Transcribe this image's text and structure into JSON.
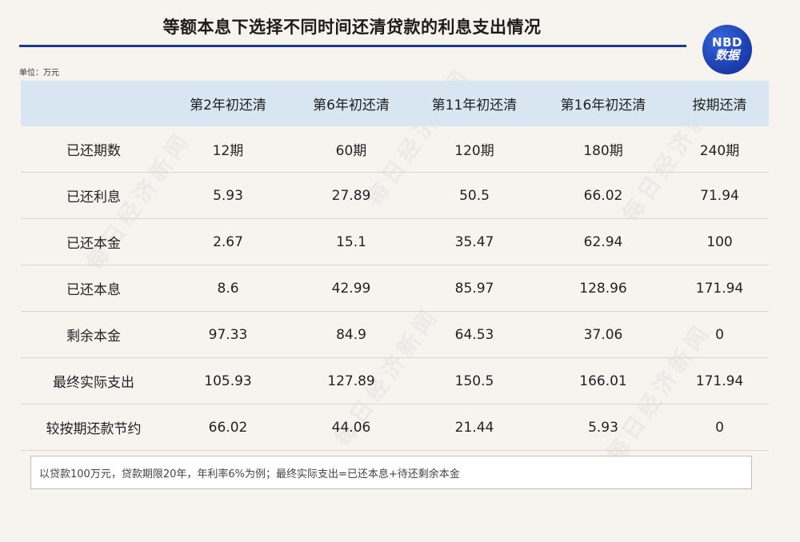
{
  "title": "等额本息下选择不同时间还清贷款的利息支出情况",
  "logo": {
    "line1": "NBD",
    "line2": "数据"
  },
  "unit": "单位：万元",
  "watermark": "每日经济新闻",
  "note": "以贷款100万元，贷款期限20年，年利率6%为例；最终实际支出=已还本息+待还剩余本金",
  "chart_data": {
    "type": "table",
    "title": "等额本息下选择不同时间还清贷款的利息支出情况",
    "columns": [
      "",
      "第2年初还清",
      "第6年初还清",
      "第11年初还清",
      "第16年初还清",
      "按期还清"
    ],
    "rows": [
      {
        "label": "已还期数",
        "values": [
          "12期",
          "60期",
          "120期",
          "180期",
          "240期"
        ]
      },
      {
        "label": "已还利息",
        "values": [
          "5.93",
          "27.89",
          "50.5",
          "66.02",
          "71.94"
        ]
      },
      {
        "label": "已还本金",
        "values": [
          "2.67",
          "15.1",
          "35.47",
          "62.94",
          "100"
        ]
      },
      {
        "label": "已还本息",
        "values": [
          "8.6",
          "42.99",
          "85.97",
          "128.96",
          "171.94"
        ]
      },
      {
        "label": "剩余本金",
        "values": [
          "97.33",
          "84.9",
          "64.53",
          "37.06",
          "0"
        ]
      },
      {
        "label": "最终实际支出",
        "values": [
          "105.93",
          "127.89",
          "150.5",
          "166.01",
          "171.94"
        ]
      },
      {
        "label": "较按期还款节约",
        "values": [
          "66.02",
          "44.06",
          "21.44",
          "5.93",
          "0"
        ]
      }
    ]
  }
}
